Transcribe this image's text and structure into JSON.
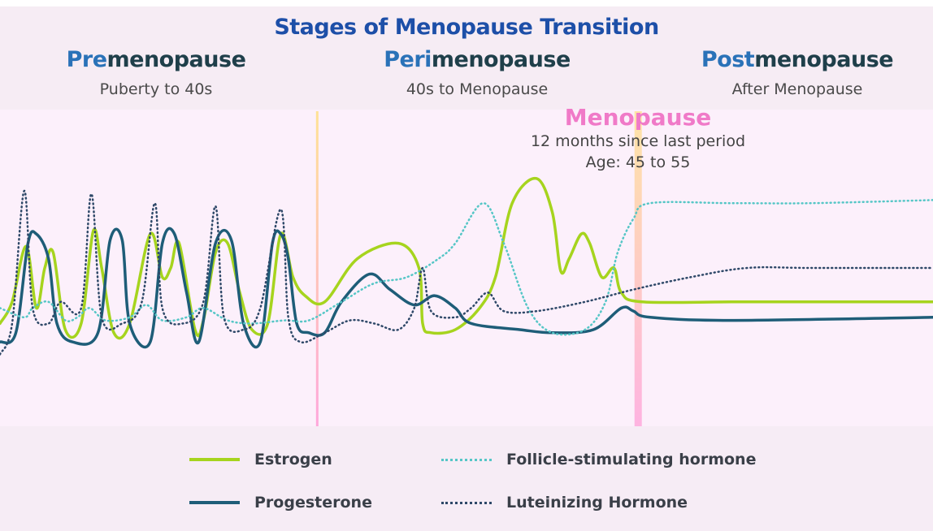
{
  "header": {
    "title": "Stages of Menopause Transition",
    "stages": [
      {
        "prefix": "Pre",
        "rest": "menopause",
        "subtitle": "Puberty to 40s"
      },
      {
        "prefix": "Peri",
        "rest": "menopause",
        "subtitle": "40s to Menopause"
      },
      {
        "prefix": "Post",
        "rest": "menopause",
        "subtitle": "After Menopause"
      }
    ]
  },
  "menopause_marker": {
    "title": "Menopause",
    "line1": "12 months since last period",
    "line2": "Age: 45 to 55"
  },
  "colors": {
    "estrogen": "#a6d41e",
    "progesterone": "#1e5d78",
    "fsh": "#55c6c6",
    "lh": "#2e4868",
    "menopause": "#f07ac8",
    "title": "#1d4fa8"
  },
  "chart_data": {
    "type": "line",
    "title": "Stages of Menopause Transition",
    "xlabel": "",
    "ylabel": "",
    "grid": false,
    "legend": "bottom",
    "note_units": "no axes printed; x and y are relative (0-100)",
    "xlim": [
      0,
      100
    ],
    "ylim": [
      0,
      100
    ],
    "markers": [
      {
        "x": 34,
        "label": "Premenopause / Perimenopause boundary"
      },
      {
        "x": 68.4,
        "label": "Menopause"
      }
    ],
    "series": [
      {
        "name": "Estrogen",
        "style": "solid",
        "color": "#a6d41e",
        "points": [
          [
            0,
            32
          ],
          [
            1.3,
            39
          ],
          [
            2.8,
            57
          ],
          [
            3.9,
            37
          ],
          [
            4.8,
            50
          ],
          [
            5.7,
            55
          ],
          [
            7,
            30
          ],
          [
            8.7,
            32
          ],
          [
            10,
            62
          ],
          [
            10.9,
            50
          ],
          [
            12.2,
            29
          ],
          [
            13.9,
            32
          ],
          [
            16.1,
            61
          ],
          [
            17.4,
            47
          ],
          [
            18.3,
            50
          ],
          [
            19.2,
            58
          ],
          [
            20.9,
            30
          ],
          [
            21.8,
            33
          ],
          [
            23.1,
            55
          ],
          [
            24.4,
            58
          ],
          [
            25.7,
            42
          ],
          [
            27,
            30
          ],
          [
            28.7,
            32
          ],
          [
            30.1,
            61
          ],
          [
            31.4,
            47
          ],
          [
            32.7,
            41
          ],
          [
            34.8,
            39
          ],
          [
            38.3,
            53
          ],
          [
            42.7,
            58
          ],
          [
            44.9,
            50
          ],
          [
            45.3,
            32
          ],
          [
            46.2,
            29
          ],
          [
            48.8,
            30
          ],
          [
            51.4,
            37
          ],
          [
            53.1,
            47
          ],
          [
            54.9,
            71
          ],
          [
            57.5,
            79
          ],
          [
            59.2,
            68
          ],
          [
            60.1,
            49
          ],
          [
            61,
            53
          ],
          [
            62.3,
            61
          ],
          [
            63.2,
            58
          ],
          [
            64.5,
            47
          ],
          [
            65.8,
            50
          ],
          [
            66.6,
            42
          ],
          [
            68.8,
            39
          ],
          [
            78.4,
            39
          ],
          [
            87.1,
            39
          ],
          [
            100,
            39
          ]
        ]
      },
      {
        "name": "Progesterone",
        "style": "solid",
        "color": "#1e5d78",
        "points": [
          [
            0,
            26
          ],
          [
            1.7,
            29
          ],
          [
            3,
            58
          ],
          [
            3.9,
            61
          ],
          [
            5.2,
            53
          ],
          [
            6.1,
            32
          ],
          [
            7.8,
            26
          ],
          [
            10.5,
            29
          ],
          [
            11.8,
            59
          ],
          [
            13.1,
            59
          ],
          [
            13.9,
            32
          ],
          [
            16.1,
            26
          ],
          [
            17.4,
            58
          ],
          [
            18.7,
            61
          ],
          [
            20,
            42
          ],
          [
            21.3,
            26
          ],
          [
            23.1,
            58
          ],
          [
            24.8,
            59
          ],
          [
            26.1,
            32
          ],
          [
            27.9,
            26
          ],
          [
            29.2,
            58
          ],
          [
            30.1,
            61
          ],
          [
            30.9,
            53
          ],
          [
            31.8,
            32
          ],
          [
            33.1,
            29
          ],
          [
            34.8,
            29
          ],
          [
            36.6,
            39
          ],
          [
            39.6,
            48
          ],
          [
            41.8,
            43
          ],
          [
            44.4,
            38
          ],
          [
            46.6,
            41
          ],
          [
            48.8,
            37
          ],
          [
            50.5,
            32
          ],
          [
            55.7,
            30
          ],
          [
            59.2,
            29
          ],
          [
            63.6,
            30
          ],
          [
            66.6,
            37
          ],
          [
            67.9,
            36
          ],
          [
            69.7,
            34
          ],
          [
            78.4,
            33
          ],
          [
            100,
            34
          ]
        ]
      },
      {
        "name": "Follicle-stimulating hormone",
        "style": "dotted",
        "color": "#55c6c6",
        "points": [
          [
            0,
            37
          ],
          [
            2.6,
            34
          ],
          [
            3.5,
            37
          ],
          [
            5.2,
            39
          ],
          [
            7,
            33
          ],
          [
            8.3,
            34
          ],
          [
            9.6,
            37
          ],
          [
            11.3,
            33
          ],
          [
            13.9,
            34
          ],
          [
            15.7,
            38
          ],
          [
            17.4,
            33
          ],
          [
            20,
            34
          ],
          [
            21.8,
            37
          ],
          [
            24.4,
            33
          ],
          [
            27,
            32
          ],
          [
            30.5,
            33
          ],
          [
            33.1,
            33
          ],
          [
            36.6,
            39
          ],
          [
            40.1,
            45
          ],
          [
            43.6,
            47
          ],
          [
            47,
            53
          ],
          [
            48.8,
            58
          ],
          [
            51.8,
            71
          ],
          [
            54,
            58
          ],
          [
            56.6,
            37
          ],
          [
            59.2,
            29
          ],
          [
            62.7,
            30
          ],
          [
            64.9,
            39
          ],
          [
            66.2,
            55
          ],
          [
            67.9,
            66
          ],
          [
            69.7,
            71
          ],
          [
            78.4,
            71
          ],
          [
            87.1,
            71
          ],
          [
            100,
            72
          ]
        ]
      },
      {
        "name": "Luteinizing Hormone",
        "style": "dotted",
        "color": "#2e4868",
        "points": [
          [
            0,
            22
          ],
          [
            1.3,
            32
          ],
          [
            2.6,
            75
          ],
          [
            3.5,
            37
          ],
          [
            5.2,
            32
          ],
          [
            6.5,
            39
          ],
          [
            8.7,
            37
          ],
          [
            9.8,
            74
          ],
          [
            10.9,
            34
          ],
          [
            13.1,
            32
          ],
          [
            15.2,
            39
          ],
          [
            16.6,
            71
          ],
          [
            17.4,
            37
          ],
          [
            19.6,
            32
          ],
          [
            21.8,
            39
          ],
          [
            23.1,
            70
          ],
          [
            24,
            34
          ],
          [
            26.1,
            30
          ],
          [
            27.9,
            37
          ],
          [
            30.1,
            69
          ],
          [
            30.9,
            34
          ],
          [
            32.2,
            26
          ],
          [
            34.8,
            29
          ],
          [
            37.5,
            33
          ],
          [
            40.1,
            32
          ],
          [
            42.7,
            30
          ],
          [
            44.4,
            37
          ],
          [
            45.3,
            50
          ],
          [
            46.2,
            36
          ],
          [
            48.8,
            34
          ],
          [
            50.5,
            37
          ],
          [
            52.3,
            42
          ],
          [
            54,
            36
          ],
          [
            57.5,
            36
          ],
          [
            62.7,
            39
          ],
          [
            67.9,
            43
          ],
          [
            74,
            47
          ],
          [
            80.1,
            50
          ],
          [
            87.1,
            50
          ],
          [
            100,
            50
          ]
        ]
      }
    ]
  },
  "legend": {
    "items": [
      {
        "label": "Estrogen"
      },
      {
        "label": "Progesterone"
      },
      {
        "label": "Follicle-stimulating hormone"
      },
      {
        "label": "Luteinizing Hormone"
      }
    ]
  }
}
